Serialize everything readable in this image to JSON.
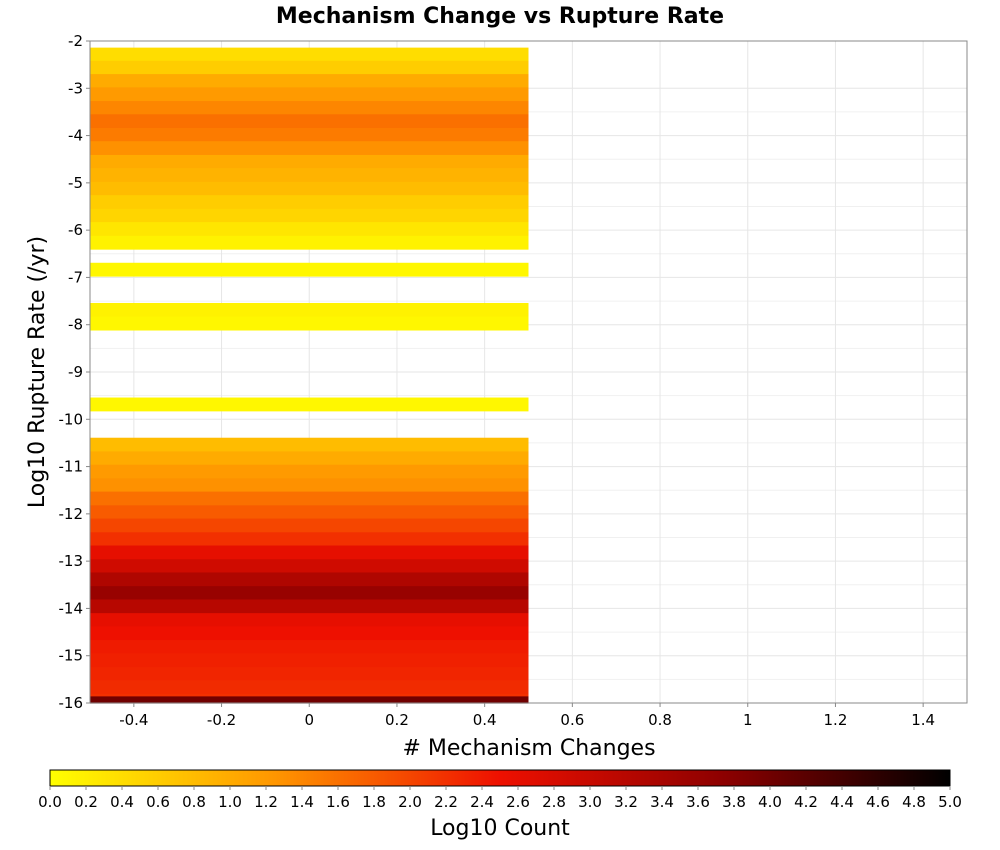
{
  "chart_data": {
    "type": "heatmap",
    "title": "Mechanism Change vs Rupture Rate",
    "xlabel": "# Mechanism Changes",
    "ylabel": "Log10 Rupture Rate (/yr)",
    "xlim": [
      -0.5,
      1.5
    ],
    "ylim": [
      -16,
      -2
    ],
    "x_ticks": [
      -0.4,
      -0.2,
      0,
      0.2,
      0.4,
      0.6,
      0.8,
      1,
      1.2,
      1.4
    ],
    "x_tick_labels": [
      "-0.4",
      "-0.2",
      "0",
      "0.2",
      "0.4",
      "0.6",
      "0.8",
      "1",
      "1.2",
      "1.4"
    ],
    "y_ticks": [
      -2,
      -3,
      -4,
      -5,
      -6,
      -7,
      -8,
      -9,
      -10,
      -11,
      -12,
      -13,
      -14,
      -15,
      -16
    ],
    "y_tick_labels": [
      "-2",
      "-3",
      "-4",
      "-5",
      "-6",
      "-7",
      "-8",
      "-9",
      "-10",
      "-11",
      "-12",
      "-13",
      "-14",
      "-15",
      "-16"
    ],
    "grid": true,
    "x_bin": [
      -0.5,
      0.5
    ],
    "rows": [
      {
        "y_bottom": -2.42,
        "y_top": -2.14,
        "log10_count": 0.4
      },
      {
        "y_bottom": -2.7,
        "y_top": -2.42,
        "log10_count": 0.6
      },
      {
        "y_bottom": -2.98,
        "y_top": -2.7,
        "log10_count": 1.0
      },
      {
        "y_bottom": -3.27,
        "y_top": -2.98,
        "log10_count": 1.2
      },
      {
        "y_bottom": -3.55,
        "y_top": -3.27,
        "log10_count": 1.4
      },
      {
        "y_bottom": -3.84,
        "y_top": -3.55,
        "log10_count": 1.6
      },
      {
        "y_bottom": -4.12,
        "y_top": -3.84,
        "log10_count": 1.5
      },
      {
        "y_bottom": -4.41,
        "y_top": -4.12,
        "log10_count": 1.3
      },
      {
        "y_bottom": -4.69,
        "y_top": -4.41,
        "log10_count": 1.0
      },
      {
        "y_bottom": -4.98,
        "y_top": -4.69,
        "log10_count": 0.9
      },
      {
        "y_bottom": -5.26,
        "y_top": -4.98,
        "log10_count": 0.8
      },
      {
        "y_bottom": -5.55,
        "y_top": -5.26,
        "log10_count": 0.6
      },
      {
        "y_bottom": -5.83,
        "y_top": -5.55,
        "log10_count": 0.5
      },
      {
        "y_bottom": -6.12,
        "y_top": -5.83,
        "log10_count": 0.3
      },
      {
        "y_bottom": -6.4,
        "y_top": -6.12,
        "log10_count": 0.15
      },
      {
        "y_bottom": -6.97,
        "y_top": -6.69,
        "log10_count": 0.1
      },
      {
        "y_bottom": -7.83,
        "y_top": -7.54,
        "log10_count": 0.15
      },
      {
        "y_bottom": -8.11,
        "y_top": -7.83,
        "log10_count": 0.1
      },
      {
        "y_bottom": -9.82,
        "y_top": -9.54,
        "log10_count": 0.1
      },
      {
        "y_bottom": -10.68,
        "y_top": -10.39,
        "log10_count": 0.8
      },
      {
        "y_bottom": -10.96,
        "y_top": -10.68,
        "log10_count": 1.0
      },
      {
        "y_bottom": -11.25,
        "y_top": -10.96,
        "log10_count": 1.2
      },
      {
        "y_bottom": -11.53,
        "y_top": -11.25,
        "log10_count": 1.3
      },
      {
        "y_bottom": -11.82,
        "y_top": -11.53,
        "log10_count": 1.6
      },
      {
        "y_bottom": -12.1,
        "y_top": -11.82,
        "log10_count": 1.8
      },
      {
        "y_bottom": -12.39,
        "y_top": -12.1,
        "log10_count": 2.0
      },
      {
        "y_bottom": -12.67,
        "y_top": -12.39,
        "log10_count": 2.2
      },
      {
        "y_bottom": -12.96,
        "y_top": -12.67,
        "log10_count": 2.6
      },
      {
        "y_bottom": -13.24,
        "y_top": -12.96,
        "log10_count": 2.9
      },
      {
        "y_bottom": -13.53,
        "y_top": -13.24,
        "log10_count": 3.3
      },
      {
        "y_bottom": -13.81,
        "y_top": -13.53,
        "log10_count": 3.6
      },
      {
        "y_bottom": -14.1,
        "y_top": -13.81,
        "log10_count": 3.2
      },
      {
        "y_bottom": -14.38,
        "y_top": -14.1,
        "log10_count": 2.6
      },
      {
        "y_bottom": -14.67,
        "y_top": -14.38,
        "log10_count": 2.5
      },
      {
        "y_bottom": -14.95,
        "y_top": -14.67,
        "log10_count": 2.4
      },
      {
        "y_bottom": -15.24,
        "y_top": -14.95,
        "log10_count": 2.35
      },
      {
        "y_bottom": -15.52,
        "y_top": -15.24,
        "log10_count": 2.3
      },
      {
        "y_bottom": -15.81,
        "y_top": -15.52,
        "log10_count": 2.25
      },
      {
        "y_bottom": -15.86,
        "y_top": -15.81,
        "log10_count": 2.2
      },
      {
        "y_bottom": -16.0,
        "y_top": -15.86,
        "log10_count": 4.0
      }
    ],
    "colorbar": {
      "label": "Log10 Count",
      "range": [
        0,
        5
      ],
      "ticks": [
        0,
        0.2,
        0.4,
        0.6,
        0.8,
        1,
        1.2,
        1.4,
        1.6,
        1.8,
        2,
        2.2,
        2.4,
        2.6,
        2.8,
        3,
        3.2,
        3.4,
        3.6,
        3.8,
        4,
        4.2,
        4.4,
        4.6,
        4.8,
        5
      ],
      "tick_labels": [
        "0.0",
        "0.2",
        "0.4",
        "0.6",
        "0.8",
        "1.0",
        "1.2",
        "1.4",
        "1.6",
        "1.8",
        "2.0",
        "2.2",
        "2.4",
        "2.6",
        "2.8",
        "3.0",
        "3.2",
        "3.4",
        "3.6",
        "3.8",
        "4.0",
        "4.2",
        "4.4",
        "4.6",
        "4.8",
        "5.0"
      ],
      "colors": [
        "#ffff00",
        "#ff6400",
        "#ee1000",
        "#b40000",
        "#000000"
      ]
    }
  }
}
